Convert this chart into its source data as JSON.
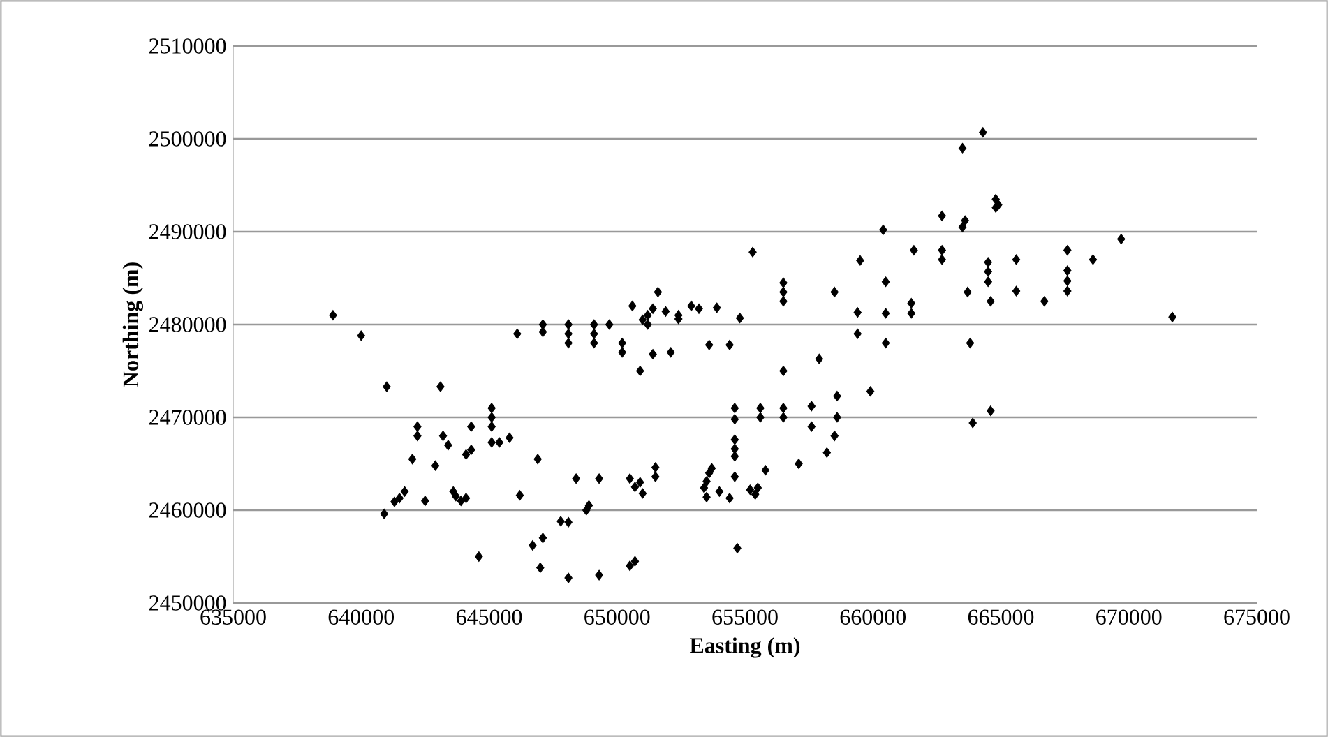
{
  "chart_data": {
    "type": "scatter",
    "xlabel": "Easting (m)",
    "ylabel": "Northing (m)",
    "xlim": [
      635000,
      675000
    ],
    "ylim": [
      2450000,
      2510000
    ],
    "xticks": [
      635000,
      640000,
      645000,
      650000,
      655000,
      660000,
      665000,
      670000,
      675000
    ],
    "yticks": [
      2450000,
      2460000,
      2470000,
      2480000,
      2490000,
      2500000,
      2510000
    ],
    "grid": "y",
    "marker": "diamond",
    "series": [
      {
        "color": "#000000",
        "x": [
          638900,
          640000,
          641000,
          640900,
          641300,
          641500,
          641700,
          642000,
          642200,
          642200,
          642500,
          642900,
          643100,
          643200,
          643400,
          643600,
          643700,
          643900,
          644100,
          644100,
          644300,
          644300,
          644600,
          645100,
          645100,
          645100,
          645100,
          645400,
          645800,
          646200,
          646100,
          646700,
          646900,
          647000,
          647100,
          647100,
          647100,
          647800,
          648100,
          648100,
          648100,
          648100,
          648100,
          648400,
          648800,
          648900,
          649100,
          649100,
          649100,
          649300,
          649300,
          649700,
          650200,
          650200,
          650500,
          650700,
          650500,
          650600,
          650700,
          650900,
          651000,
          650900,
          651000,
          651200,
          651200,
          651400,
          651400,
          651500,
          651500,
          651600,
          651900,
          652100,
          652400,
          652400,
          652900,
          653200,
          653400,
          653500,
          653600,
          653500,
          653600,
          653700,
          653900,
          654000,
          654400,
          654400,
          654600,
          654600,
          654600,
          654600,
          654600,
          654600,
          654700,
          654800,
          655200,
          655400,
          655500,
          655300,
          655600,
          655600,
          655800,
          656500,
          656500,
          656500,
          656500,
          656500,
          656500,
          657100,
          657600,
          657600,
          657900,
          658200,
          658500,
          658500,
          658600,
          658600,
          659400,
          659400,
          659500,
          659900,
          660400,
          660500,
          660500,
          660500,
          661500,
          661500,
          661600,
          662700,
          662700,
          662700,
          663500,
          663500,
          663600,
          663700,
          663800,
          663900,
          664300,
          664500,
          664500,
          664500,
          664600,
          664600,
          664800,
          664800,
          664900,
          665600,
          665600,
          666700,
          667600,
          667600,
          667600,
          667600,
          668600,
          669700,
          671700
        ],
        "values": [
          2481000,
          2478800,
          2473300,
          2459600,
          2460900,
          2461300,
          2462000,
          2465500,
          2468000,
          2469000,
          2461000,
          2464800,
          2473300,
          2468000,
          2467000,
          2462000,
          2461500,
          2461000,
          2461300,
          2466000,
          2466500,
          2469000,
          2455000,
          2467300,
          2469000,
          2470000,
          2471000,
          2467300,
          2467800,
          2461600,
          2479000,
          2456200,
          2465500,
          2453800,
          2457000,
          2479200,
          2480000,
          2458800,
          2458700,
          2452700,
          2478000,
          2479000,
          2480000,
          2463400,
          2460000,
          2460500,
          2478000,
          2479000,
          2480000,
          2453000,
          2463400,
          2480000,
          2477000,
          2478000,
          2454000,
          2454500,
          2463400,
          2482000,
          2462500,
          2463000,
          2461800,
          2475000,
          2480500,
          2481000,
          2480000,
          2481700,
          2476800,
          2464600,
          2463600,
          2483500,
          2481400,
          2477000,
          2480600,
          2481000,
          2482000,
          2481700,
          2462400,
          2463100,
          2464000,
          2461400,
          2477800,
          2464500,
          2481800,
          2462000,
          2461300,
          2477800,
          2463600,
          2465800,
          2466600,
          2467600,
          2469800,
          2471000,
          2455900,
          2480700,
          2462200,
          2461700,
          2462400,
          2487800,
          2470000,
          2471000,
          2464300,
          2470000,
          2471000,
          2482500,
          2483500,
          2484500,
          2475000,
          2465000,
          2469000,
          2471200,
          2476300,
          2466200,
          2483500,
          2468000,
          2470000,
          2472300,
          2479000,
          2481300,
          2486900,
          2472800,
          2490200,
          2484600,
          2481200,
          2478000,
          2482300,
          2481200,
          2488000,
          2487000,
          2488000,
          2491700,
          2499000,
          2490500,
          2491200,
          2483500,
          2478000,
          2469400,
          2500700,
          2486700,
          2485700,
          2484600,
          2482500,
          2470700,
          2492600,
          2493500,
          2492900,
          2487000,
          2483600,
          2482500,
          2488000,
          2485800,
          2484700,
          2483600,
          2487000,
          2489200,
          2480800
        ]
      }
    ]
  }
}
